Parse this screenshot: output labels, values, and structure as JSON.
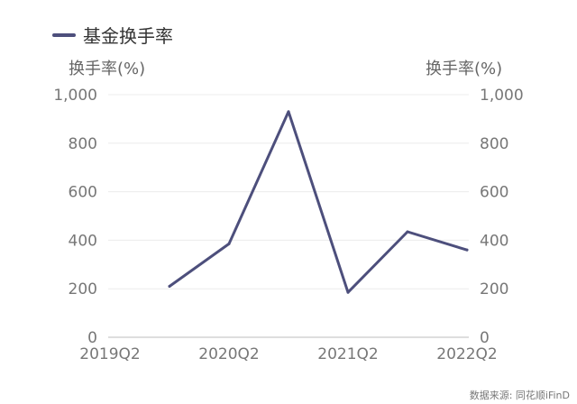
{
  "legend": {
    "label": "基金换手率",
    "color": "#4d4f7c"
  },
  "axis_titles": {
    "left": "换手率(%)",
    "right": "换手率(%)"
  },
  "source": "数据来源: 同花顺iFinD",
  "chart_data": {
    "type": "line",
    "x": [
      "2019Q2",
      "2019Q4",
      "2020Q2",
      "2020Q4",
      "2021Q2",
      "2021Q4",
      "2022Q2"
    ],
    "series": [
      {
        "name": "基金换手率",
        "color": "#4d4f7c",
        "values": [
          null,
          210,
          385,
          930,
          185,
          435,
          360
        ]
      }
    ],
    "x_tick_labels": [
      "2019Q2",
      "2020Q2",
      "2021Q2",
      "2022Q2"
    ],
    "y_ticks": [
      "0",
      "200",
      "400",
      "600",
      "800",
      "1,000"
    ],
    "ylim": [
      0,
      1000
    ],
    "ylabel_left": "换手率(%)",
    "ylabel_right": "换手率(%)",
    "grid": true,
    "legend_position": "top-left"
  }
}
